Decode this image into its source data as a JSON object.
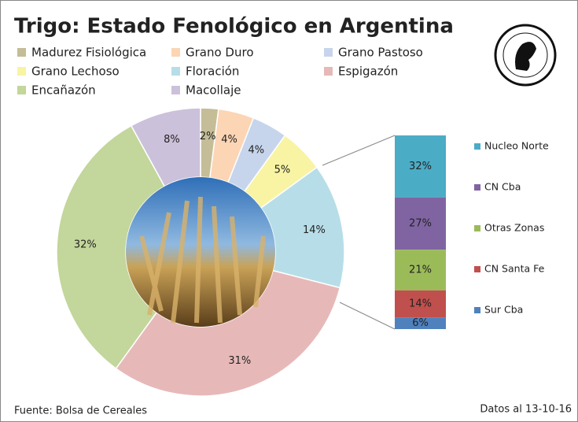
{
  "chart_data": [
    {
      "type": "pie",
      "title": "Trigo: Estado Fenológico en Argentina",
      "categories": [
        "Madurez Fisiológica",
        "Grano Duro",
        "Grano Pastoso",
        "Grano Lechoso",
        "Floración",
        "Espigazón",
        "Encañazón",
        "Macollaje"
      ],
      "values": [
        2,
        4,
        4,
        5,
        14,
        31,
        32,
        8
      ],
      "value_labels": [
        "2%",
        "4%",
        "4%",
        "5%",
        "14%",
        "31%",
        "32%",
        "8%"
      ],
      "colors": [
        "#c4bd97",
        "#fcd5b5",
        "#c6d5ec",
        "#f8f4a3",
        "#b7dee8",
        "#e6b9b8",
        "#c3d69b",
        "#ccc1da"
      ],
      "donut": true
    },
    {
      "type": "stacked-bar",
      "categories": [
        "Nucleo Norte",
        "CN Cba",
        "Otras Zonas",
        "CN Santa Fe",
        "Sur Cba"
      ],
      "values": [
        32,
        27,
        21,
        14,
        6
      ],
      "value_labels": [
        "32%",
        "27%",
        "21%",
        "14%",
        "6%"
      ],
      "colors": [
        "#4bacc6",
        "#8064a2",
        "#9bbb59",
        "#c0504d",
        "#4f81bd"
      ]
    }
  ],
  "footer": {
    "source": "Fuente:  Bolsa de Cereales",
    "date": "Datos al 13-10-16"
  }
}
